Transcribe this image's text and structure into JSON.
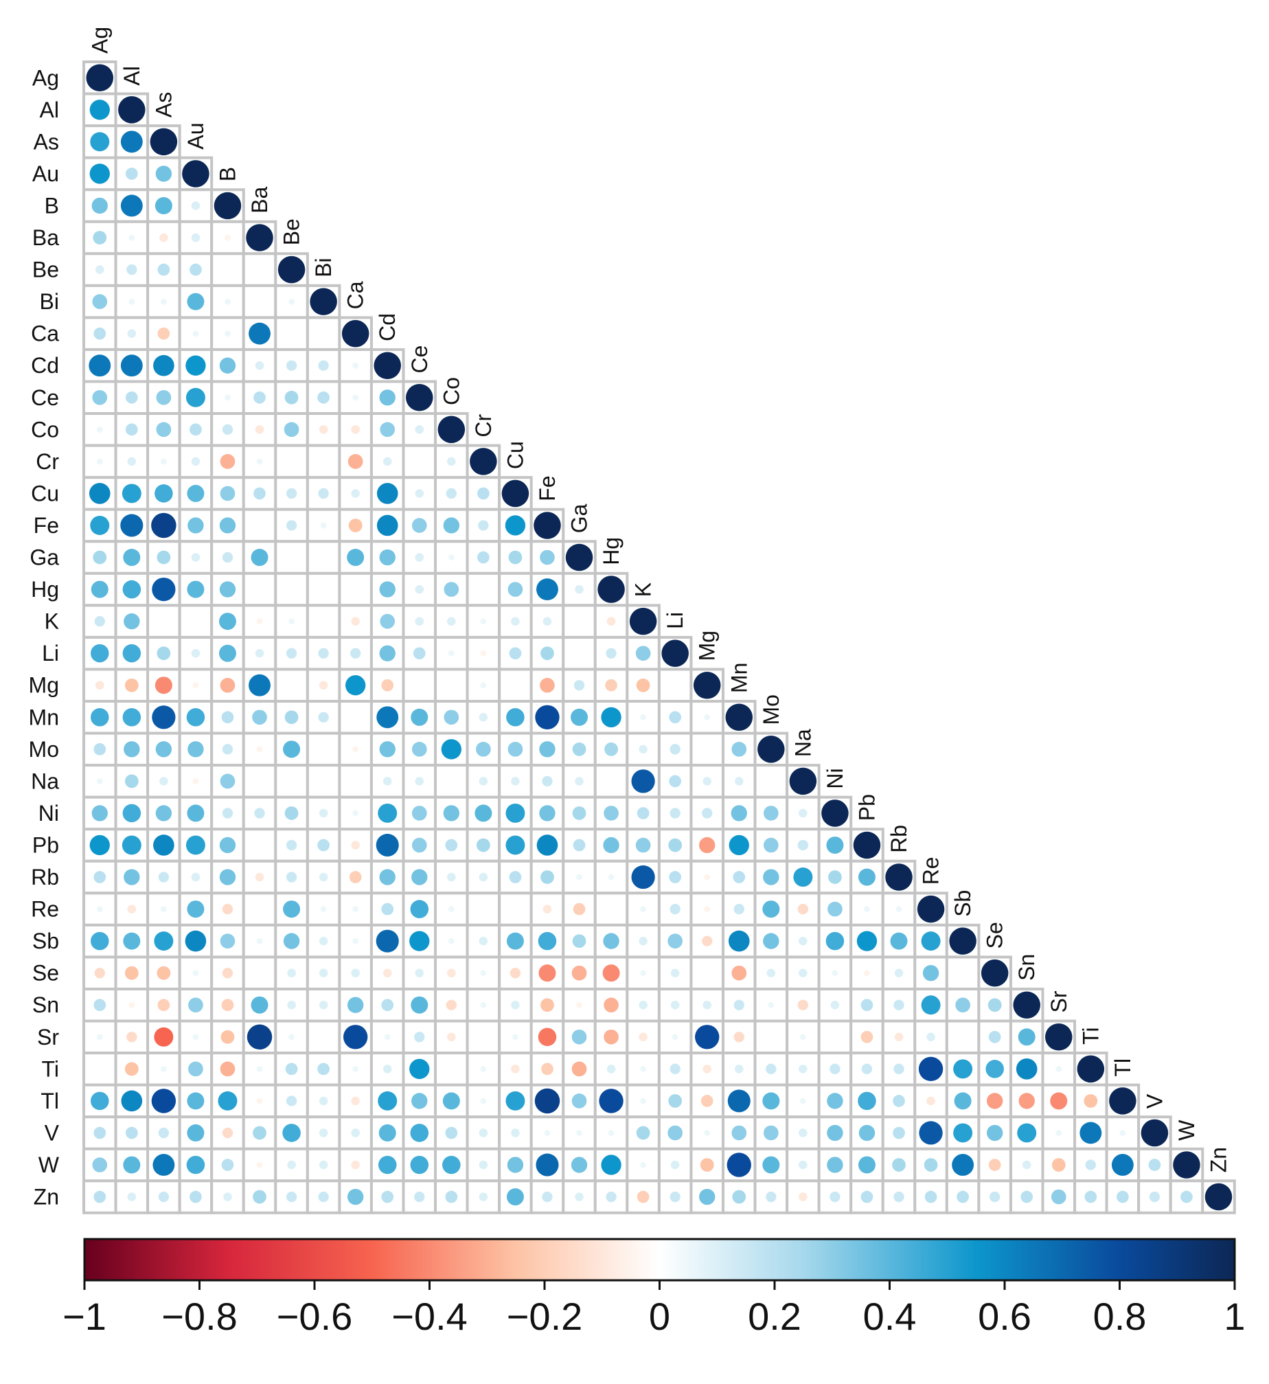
{
  "chart_data": {
    "type": "heatmap",
    "layout": "lower-triangular correlation matrix",
    "marker": "circle (size and color scale with |r|)",
    "variables": [
      "Ag",
      "Al",
      "As",
      "Au",
      "B",
      "Ba",
      "Be",
      "Bi",
      "Ca",
      "Cd",
      "Ce",
      "Co",
      "Cr",
      "Cu",
      "Fe",
      "Ga",
      "Hg",
      "K",
      "Li",
      "Mg",
      "Mn",
      "Mo",
      "Na",
      "Ni",
      "Pb",
      "Rb",
      "Re",
      "Sb",
      "Se",
      "Sn",
      "Sr",
      "Ti",
      "Tl",
      "V",
      "W",
      "Zn"
    ],
    "values": [
      [
        1
      ],
      [
        0.55,
        1
      ],
      [
        0.5,
        0.65,
        1
      ],
      [
        0.55,
        0.2,
        0.35,
        1
      ],
      [
        0.35,
        0.65,
        0.4,
        0.1,
        1
      ],
      [
        0.25,
        0.05,
        -0.1,
        0.1,
        -0.05,
        1
      ],
      [
        0.1,
        0.15,
        0.2,
        0.2,
        0,
        0,
        1
      ],
      [
        0.3,
        0.05,
        0.05,
        0.4,
        0.05,
        0,
        0.05,
        1
      ],
      [
        0.2,
        0.1,
        -0.2,
        0.05,
        0.05,
        0.65,
        0,
        0,
        1
      ],
      [
        0.65,
        0.65,
        0.6,
        0.55,
        0.35,
        0.1,
        0.15,
        0.15,
        0.05,
        1
      ],
      [
        0.3,
        0.2,
        0.3,
        0.5,
        0.05,
        0.2,
        0.25,
        0.2,
        0.05,
        0.35,
        1
      ],
      [
        0.05,
        0.2,
        0.3,
        0.2,
        0.15,
        -0.1,
        0.3,
        -0.1,
        -0.1,
        0.3,
        0.1,
        1
      ],
      [
        0.05,
        0.1,
        0.05,
        0.1,
        -0.3,
        0.05,
        0,
        0,
        -0.3,
        0.1,
        0,
        0.1,
        1
      ],
      [
        0.6,
        0.5,
        0.45,
        0.4,
        0.3,
        0.2,
        0.15,
        0.15,
        0.1,
        0.6,
        0.1,
        0.15,
        0.2,
        1
      ],
      [
        0.5,
        0.7,
        0.85,
        0.35,
        0.35,
        0,
        0.15,
        0.05,
        -0.25,
        0.6,
        0.3,
        0.35,
        0.15,
        0.55,
        1
      ],
      [
        0.25,
        0.4,
        0.25,
        0.1,
        0.15,
        0.4,
        0,
        0,
        0.4,
        0.35,
        0.1,
        0.05,
        0.2,
        0.25,
        0.3,
        1
      ],
      [
        0.4,
        0.45,
        0.75,
        0.4,
        0.35,
        0,
        0,
        0,
        0,
        0.35,
        0.1,
        0.3,
        0,
        0.3,
        0.65,
        0.1,
        1
      ],
      [
        0.15,
        0.35,
        0,
        0,
        0.4,
        -0.05,
        0.05,
        0,
        -0.1,
        0.3,
        0.1,
        0.1,
        0.05,
        0.1,
        0.1,
        0,
        -0.1,
        1
      ],
      [
        0.45,
        0.45,
        0.25,
        0.1,
        0.4,
        0.1,
        0.15,
        0.15,
        0.15,
        0.35,
        0.2,
        0.05,
        -0.05,
        0.2,
        0.25,
        0,
        0.15,
        0.3,
        1
      ],
      [
        -0.1,
        -0.25,
        -0.4,
        -0.05,
        -0.3,
        0.65,
        0,
        -0.1,
        0.55,
        -0.2,
        0,
        0,
        0.05,
        0,
        -0.3,
        0.15,
        -0.2,
        -0.25,
        0,
        1
      ],
      [
        0.45,
        0.45,
        0.75,
        0.45,
        0.2,
        0.3,
        0.25,
        0.15,
        0,
        0.65,
        0.4,
        0.3,
        0.1,
        0.45,
        0.8,
        0.4,
        0.55,
        0.05,
        0.2,
        0.05,
        1
      ],
      [
        0.2,
        0.35,
        0.35,
        0.35,
        0.15,
        -0.05,
        0.4,
        0,
        -0.05,
        0.35,
        0.3,
        0.55,
        0.3,
        0.3,
        0.35,
        0.25,
        0.25,
        0.1,
        0.15,
        0,
        0.3,
        1
      ],
      [
        0.05,
        0.25,
        0.1,
        -0.05,
        0.3,
        0,
        0,
        0,
        0,
        0.1,
        0.1,
        0,
        0.1,
        0.1,
        0.15,
        0.1,
        0,
        0.75,
        0.2,
        0.1,
        0.1,
        0,
        1
      ],
      [
        0.35,
        0.45,
        0.35,
        0.4,
        0.15,
        0.15,
        0.25,
        0.1,
        0.05,
        0.5,
        0.3,
        0.35,
        0.4,
        0.5,
        0.35,
        0.25,
        0.3,
        0.2,
        0.15,
        0.15,
        0.35,
        0.3,
        0.1,
        1
      ],
      [
        0.55,
        0.5,
        0.6,
        0.5,
        0.35,
        0,
        0.15,
        0.2,
        -0.1,
        0.7,
        0.3,
        0.2,
        0.25,
        0.5,
        0.6,
        0.2,
        0.35,
        0.3,
        0.25,
        -0.35,
        0.55,
        0.3,
        0.15,
        0.4,
        1
      ],
      [
        0.2,
        0.35,
        0.15,
        0.1,
        0.35,
        -0.1,
        0.15,
        0.1,
        -0.2,
        0.35,
        0.35,
        0.1,
        0.1,
        0.2,
        0.25,
        0.05,
        0.05,
        0.75,
        0.2,
        -0.05,
        0.2,
        0.35,
        0.5,
        0.25,
        0.4,
        1
      ],
      [
        0.05,
        -0.1,
        0.05,
        0.4,
        -0.15,
        0,
        0.4,
        0.05,
        0.05,
        0.2,
        0.45,
        0.05,
        0,
        0,
        -0.1,
        -0.2,
        0,
        0.05,
        0.15,
        -0.05,
        0.15,
        0.4,
        -0.15,
        0.3,
        0.05,
        0.05,
        1
      ],
      [
        0.45,
        0.4,
        0.5,
        0.6,
        0.3,
        0.05,
        0.35,
        0.1,
        0.05,
        0.7,
        0.55,
        0.05,
        0.1,
        0.4,
        0.45,
        0.25,
        0.35,
        0.1,
        0.3,
        -0.15,
        0.6,
        0.35,
        0.1,
        0.45,
        0.55,
        0.4,
        0.5,
        1
      ],
      [
        -0.15,
        -0.25,
        -0.25,
        0.05,
        -0.15,
        0,
        0.1,
        0.1,
        0.1,
        -0.1,
        0.1,
        -0.1,
        0.05,
        -0.15,
        -0.4,
        -0.3,
        -0.4,
        0.05,
        0.1,
        0,
        -0.3,
        0.1,
        0.1,
        0.05,
        -0.05,
        0.1,
        0.35,
        0,
        1
      ],
      [
        0.2,
        -0.05,
        -0.2,
        0.3,
        -0.2,
        0.4,
        0.1,
        0.1,
        0.35,
        0.2,
        0.4,
        -0.15,
        0.05,
        0.1,
        -0.25,
        -0.05,
        -0.3,
        0.1,
        0.1,
        0.1,
        0.15,
        0.05,
        -0.15,
        0.1,
        0.2,
        0.15,
        0.5,
        0.3,
        0.25,
        1
      ],
      [
        0.05,
        -0.15,
        -0.5,
        0.05,
        -0.25,
        0.85,
        0.05,
        0,
        0.8,
        0.05,
        0.15,
        -0.1,
        0,
        0.05,
        -0.45,
        0.3,
        -0.3,
        -0.1,
        0.05,
        0.8,
        -0.15,
        0,
        0.05,
        0,
        -0.2,
        -0.1,
        0.1,
        0,
        0.2,
        0.4,
        1
      ],
      [
        0,
        -0.25,
        0.05,
        0.3,
        -0.3,
        0.05,
        0.2,
        0.2,
        0.05,
        0.1,
        0.55,
        0,
        0.05,
        -0.1,
        -0.2,
        -0.3,
        0.1,
        0.05,
        0.15,
        -0.1,
        0.1,
        0.15,
        0.1,
        0.15,
        0.15,
        0.15,
        0.8,
        0.5,
        0.45,
        0.6,
        0.05,
        1
      ],
      [
        0.45,
        0.6,
        0.8,
        0.4,
        0.5,
        -0.05,
        0.15,
        0.1,
        -0.1,
        0.5,
        0.35,
        0.4,
        0.05,
        0.5,
        0.85,
        0.3,
        0.8,
        0.05,
        0.25,
        -0.2,
        0.7,
        0.4,
        0.05,
        0.35,
        0.45,
        0.2,
        -0.1,
        0.4,
        -0.35,
        -0.35,
        -0.4,
        -0.25,
        1
      ],
      [
        0.2,
        0.2,
        0.15,
        0.4,
        -0.15,
        0.25,
        0.45,
        0.1,
        0.1,
        0.4,
        0.45,
        0.2,
        0.1,
        0.1,
        0.05,
        0.05,
        0.05,
        0.25,
        0.3,
        0.05,
        0.3,
        0.3,
        0.1,
        0.35,
        0.35,
        0.2,
        0.75,
        0.5,
        0.35,
        0.5,
        0.05,
        0.65,
        0.05,
        1
      ],
      [
        0.3,
        0.4,
        0.65,
        0.45,
        0.2,
        -0.05,
        0.1,
        0.1,
        -0.1,
        0.45,
        0.45,
        0.45,
        0.1,
        0.35,
        0.7,
        0.35,
        0.55,
        0.05,
        0.1,
        -0.25,
        0.8,
        0.4,
        0.1,
        0.35,
        0.4,
        0.25,
        0.25,
        0.65,
        -0.2,
        0.1,
        -0.25,
        0.15,
        0.65,
        0.2,
        1
      ],
      [
        0.2,
        0.1,
        0.15,
        0.2,
        0.1,
        0.25,
        0.15,
        0.15,
        0.35,
        0.2,
        0.15,
        0.2,
        0.1,
        0.4,
        0.15,
        0.1,
        0.15,
        -0.2,
        0.15,
        0.35,
        0.25,
        0.15,
        -0.1,
        0.15,
        0.2,
        0.15,
        0.2,
        0.2,
        0.15,
        0.2,
        0.3,
        0.2,
        0.2,
        0.15,
        0.2,
        1
      ]
    ],
    "colorbar": {
      "range": [
        -1,
        1
      ],
      "ticks": [
        -1,
        -0.8,
        -0.6,
        -0.4,
        -0.2,
        0,
        0.2,
        0.4,
        0.6,
        0.8,
        1
      ],
      "tick_labels": [
        "−1",
        "−0.8",
        "−0.6",
        "−0.4",
        "−0.2",
        "0",
        "0.2",
        "0.4",
        "0.6",
        "0.8",
        "1"
      ],
      "stops": [
        {
          "v": -1,
          "color": "#67001f"
        },
        {
          "v": -0.75,
          "color": "#d6263c"
        },
        {
          "v": -0.5,
          "color": "#f7644f"
        },
        {
          "v": -0.25,
          "color": "#fdc3a5"
        },
        {
          "v": 0,
          "color": "#ffffff"
        },
        {
          "v": 0.25,
          "color": "#a6d8ec"
        },
        {
          "v": 0.55,
          "color": "#0d96cc"
        },
        {
          "v": 0.8,
          "color": "#0a4a9c"
        },
        {
          "v": 1,
          "color": "#0c2755"
        }
      ]
    }
  }
}
